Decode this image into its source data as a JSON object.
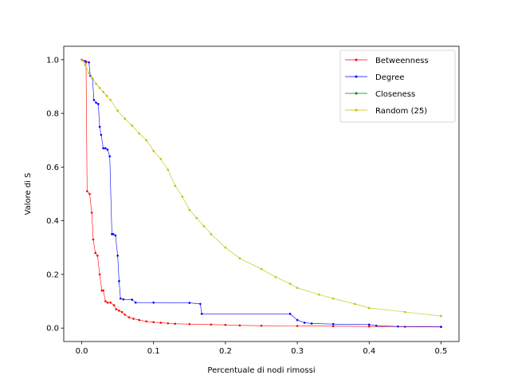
{
  "chart_data": {
    "type": "line",
    "title": "",
    "xlabel": "Percentuale di nodi rimossi",
    "ylabel": "Valore di S",
    "xlim": [
      -0.025,
      0.525
    ],
    "ylim": [
      -0.05,
      1.05
    ],
    "xticks": [
      0.0,
      0.1,
      0.2,
      0.3,
      0.4,
      0.5
    ],
    "xtick_labels": [
      "0.0",
      "0.1",
      "0.2",
      "0.3",
      "0.4",
      "0.5"
    ],
    "yticks": [
      0.0,
      0.2,
      0.4,
      0.6,
      0.8,
      1.0
    ],
    "ytick_labels": [
      "0.0",
      "0.2",
      "0.4",
      "0.6",
      "0.8",
      "1.0"
    ],
    "grid": false,
    "legend_position": "top-right",
    "series": [
      {
        "name": "Betweenness",
        "color": "#ff0000",
        "x": [
          0.0,
          0.006,
          0.0075,
          0.011,
          0.014,
          0.016,
          0.019,
          0.022,
          0.025,
          0.028,
          0.03,
          0.033,
          0.036,
          0.04,
          0.045,
          0.048,
          0.052,
          0.056,
          0.06,
          0.066,
          0.072,
          0.08,
          0.09,
          0.1,
          0.11,
          0.12,
          0.13,
          0.15,
          0.18,
          0.2,
          0.22,
          0.25,
          0.3,
          0.35,
          0.4,
          0.45,
          0.5
        ],
        "y": [
          1.0,
          0.99,
          0.51,
          0.5,
          0.43,
          0.33,
          0.28,
          0.27,
          0.2,
          0.14,
          0.14,
          0.1,
          0.095,
          0.095,
          0.085,
          0.07,
          0.065,
          0.06,
          0.05,
          0.04,
          0.035,
          0.03,
          0.025,
          0.022,
          0.02,
          0.018,
          0.016,
          0.015,
          0.013,
          0.012,
          0.01,
          0.009,
          0.008,
          0.007,
          0.006,
          0.005,
          0.004
        ]
      },
      {
        "name": "Degree",
        "color": "#0000ff",
        "x": [
          0.0,
          0.005,
          0.01,
          0.012,
          0.015,
          0.017,
          0.02,
          0.023,
          0.025,
          0.027,
          0.03,
          0.033,
          0.036,
          0.039,
          0.042,
          0.044,
          0.047,
          0.05,
          0.052,
          0.054,
          0.058,
          0.07,
          0.075,
          0.1,
          0.15,
          0.165,
          0.167,
          0.29,
          0.3,
          0.31,
          0.32,
          0.35,
          0.4,
          0.41,
          0.44,
          0.5
        ],
        "y": [
          1.0,
          0.995,
          0.99,
          0.94,
          0.93,
          0.85,
          0.84,
          0.835,
          0.75,
          0.72,
          0.67,
          0.67,
          0.665,
          0.64,
          0.35,
          0.35,
          0.345,
          0.27,
          0.175,
          0.11,
          0.107,
          0.106,
          0.095,
          0.095,
          0.094,
          0.09,
          0.053,
          0.053,
          0.03,
          0.02,
          0.017,
          0.015,
          0.013,
          0.009,
          0.006,
          0.005
        ]
      },
      {
        "name": "Closeness",
        "color": "#008000",
        "x": [],
        "y": []
      },
      {
        "name": "Random (25)",
        "color": "#bfbf00",
        "x": [
          0.0,
          0.005,
          0.01,
          0.015,
          0.02,
          0.025,
          0.03,
          0.035,
          0.04,
          0.05,
          0.06,
          0.07,
          0.08,
          0.09,
          0.1,
          0.11,
          0.12,
          0.13,
          0.14,
          0.15,
          0.16,
          0.17,
          0.18,
          0.2,
          0.22,
          0.25,
          0.27,
          0.29,
          0.3,
          0.33,
          0.35,
          0.38,
          0.4,
          0.45,
          0.5
        ],
        "y": [
          1.0,
          0.98,
          0.95,
          0.93,
          0.91,
          0.895,
          0.88,
          0.865,
          0.85,
          0.81,
          0.78,
          0.755,
          0.725,
          0.7,
          0.66,
          0.63,
          0.59,
          0.53,
          0.49,
          0.44,
          0.41,
          0.38,
          0.35,
          0.3,
          0.26,
          0.22,
          0.19,
          0.165,
          0.15,
          0.125,
          0.11,
          0.09,
          0.075,
          0.06,
          0.045
        ]
      }
    ]
  }
}
